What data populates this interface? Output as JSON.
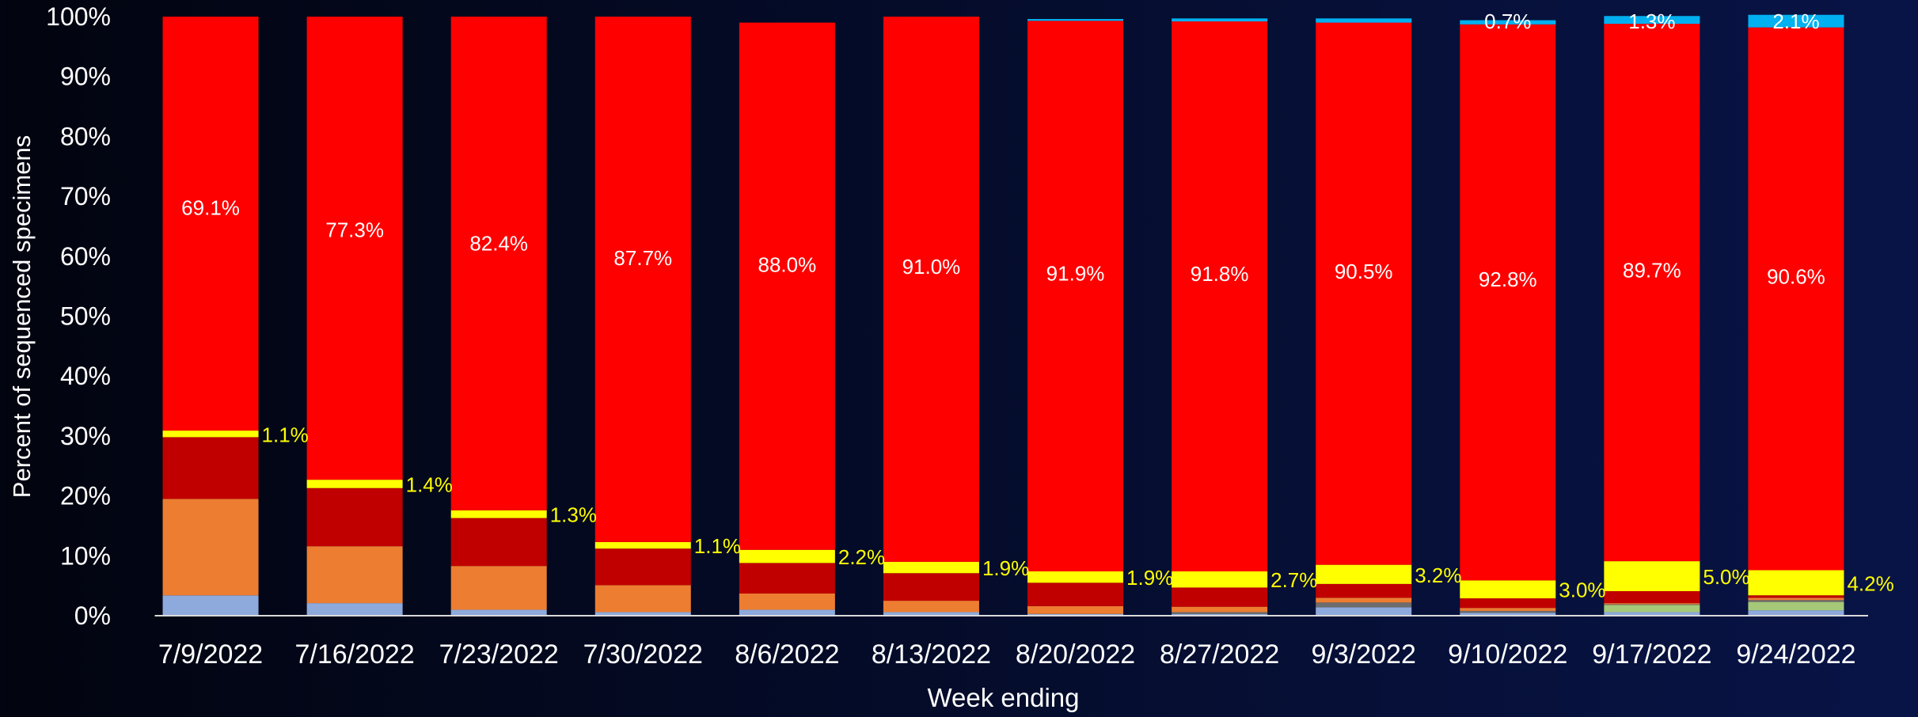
{
  "chart_data": {
    "type": "bar",
    "stacked": true,
    "percent_stacked": true,
    "xlabel": "Week ending",
    "ylabel": "Percent of sequenced specimens",
    "ylim": [
      0,
      100
    ],
    "y_ticks": [
      "0%",
      "10%",
      "20%",
      "30%",
      "40%",
      "50%",
      "60%",
      "70%",
      "80%",
      "90%",
      "100%"
    ],
    "categories": [
      "7/9/2022",
      "7/16/2022",
      "7/23/2022",
      "7/30/2022",
      "8/6/2022",
      "8/13/2022",
      "8/20/2022",
      "8/27/2022",
      "9/3/2022",
      "9/10/2022",
      "9/17/2022",
      "9/24/2022"
    ],
    "grid": false,
    "legend": "none",
    "series": [
      {
        "color": "#8ea9db",
        "values": [
          3.4,
          2.1,
          1.0,
          0.6,
          1.0,
          0.6,
          0.3,
          0.3,
          1.4,
          0.5,
          0.6,
          0.9
        ]
      },
      {
        "color": "#a5c978",
        "values": [
          0,
          0,
          0,
          0,
          0,
          0,
          0,
          0,
          0,
          0,
          1.2,
          1.4
        ]
      },
      {
        "color": "#6d6d6d",
        "values": [
          0,
          0,
          0,
          0,
          0,
          0,
          0,
          0.3,
          0.8,
          0.3,
          0.1,
          0.3
        ]
      },
      {
        "color": "#ed7d31",
        "values": [
          16.1,
          9.5,
          7.3,
          4.5,
          2.7,
          1.9,
          1.3,
          0.9,
          0.8,
          0.5,
          0.2,
          0.4
        ]
      },
      {
        "color": "#c00000",
        "values": [
          10.3,
          9.7,
          8.0,
          6.1,
          5.1,
          4.6,
          3.9,
          3.2,
          2.3,
          1.6,
          2.0,
          0.4
        ]
      },
      {
        "color": "#ffff00",
        "values": [
          1.1,
          1.4,
          1.3,
          1.1,
          2.2,
          1.9,
          1.9,
          2.7,
          3.2,
          3.0,
          5.0,
          4.2
        ],
        "labels": [
          "1.1%",
          "1.4%",
          "1.3%",
          "1.1%",
          "2.2%",
          "1.9%",
          "1.9%",
          "2.7%",
          "3.2%",
          "3.0%",
          "5.0%",
          "4.2%"
        ],
        "label_color": "#ffff00"
      },
      {
        "color": "#ff0000",
        "values": [
          69.1,
          77.3,
          82.4,
          87.7,
          88.0,
          91.0,
          91.9,
          91.8,
          90.5,
          92.8,
          89.7,
          90.6
        ],
        "labels": [
          "69.1%",
          "77.3%",
          "82.4%",
          "87.7%",
          "88.0%",
          "91.0%",
          "91.9%",
          "91.8%",
          "90.5%",
          "92.8%",
          "89.7%",
          "90.6%"
        ],
        "label_color": "#ffffff"
      },
      {
        "color": "#00b0f0",
        "values": [
          0,
          0,
          0,
          0,
          0,
          0,
          0.3,
          0.5,
          0.7,
          0.7,
          1.3,
          2.1
        ],
        "labels": [
          "",
          "",
          "",
          "",
          "",
          "",
          "",
          "",
          "",
          "0.7%",
          "1.3%",
          "2.1%"
        ],
        "label_color": "#ffffff"
      }
    ]
  }
}
